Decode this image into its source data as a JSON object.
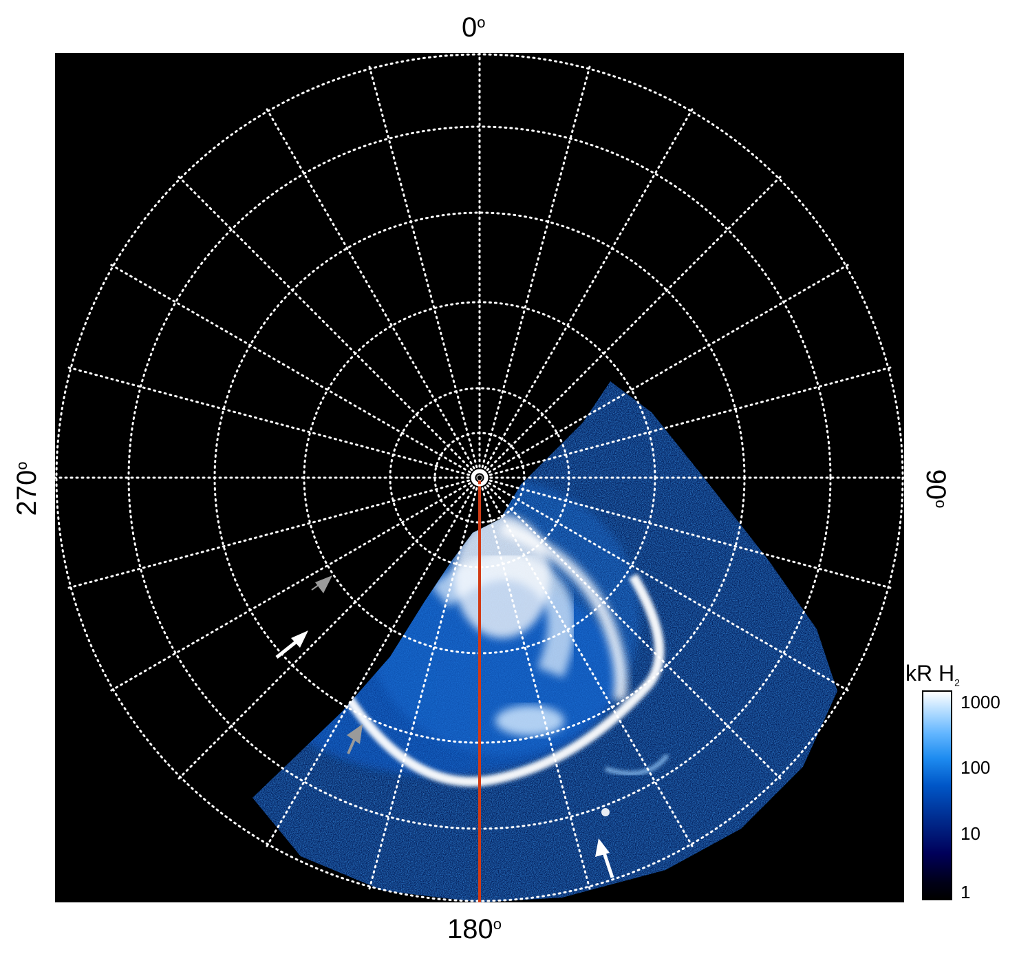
{
  "figure": {
    "labels": {
      "top": "0",
      "bottom": "180",
      "left": "270",
      "right": "90",
      "degree_symbol": "o"
    },
    "colorbar": {
      "title": "kR H",
      "title_subscript": "2",
      "ticks": [
        "1000",
        "100",
        "10",
        "1"
      ],
      "scale": "log",
      "colormap_colors": [
        "#000000",
        "#00005a",
        "#0057c8",
        "#63b6ff",
        "#ffffff"
      ]
    },
    "colors": {
      "background": "#000000",
      "grid": "#ffffff",
      "meridian_line": "#d23a14",
      "white_arrow": "#ffffff",
      "gray_arrow": "#9a9a9a"
    },
    "arrows": {
      "white_count": 2,
      "gray_count": 2
    }
  }
}
